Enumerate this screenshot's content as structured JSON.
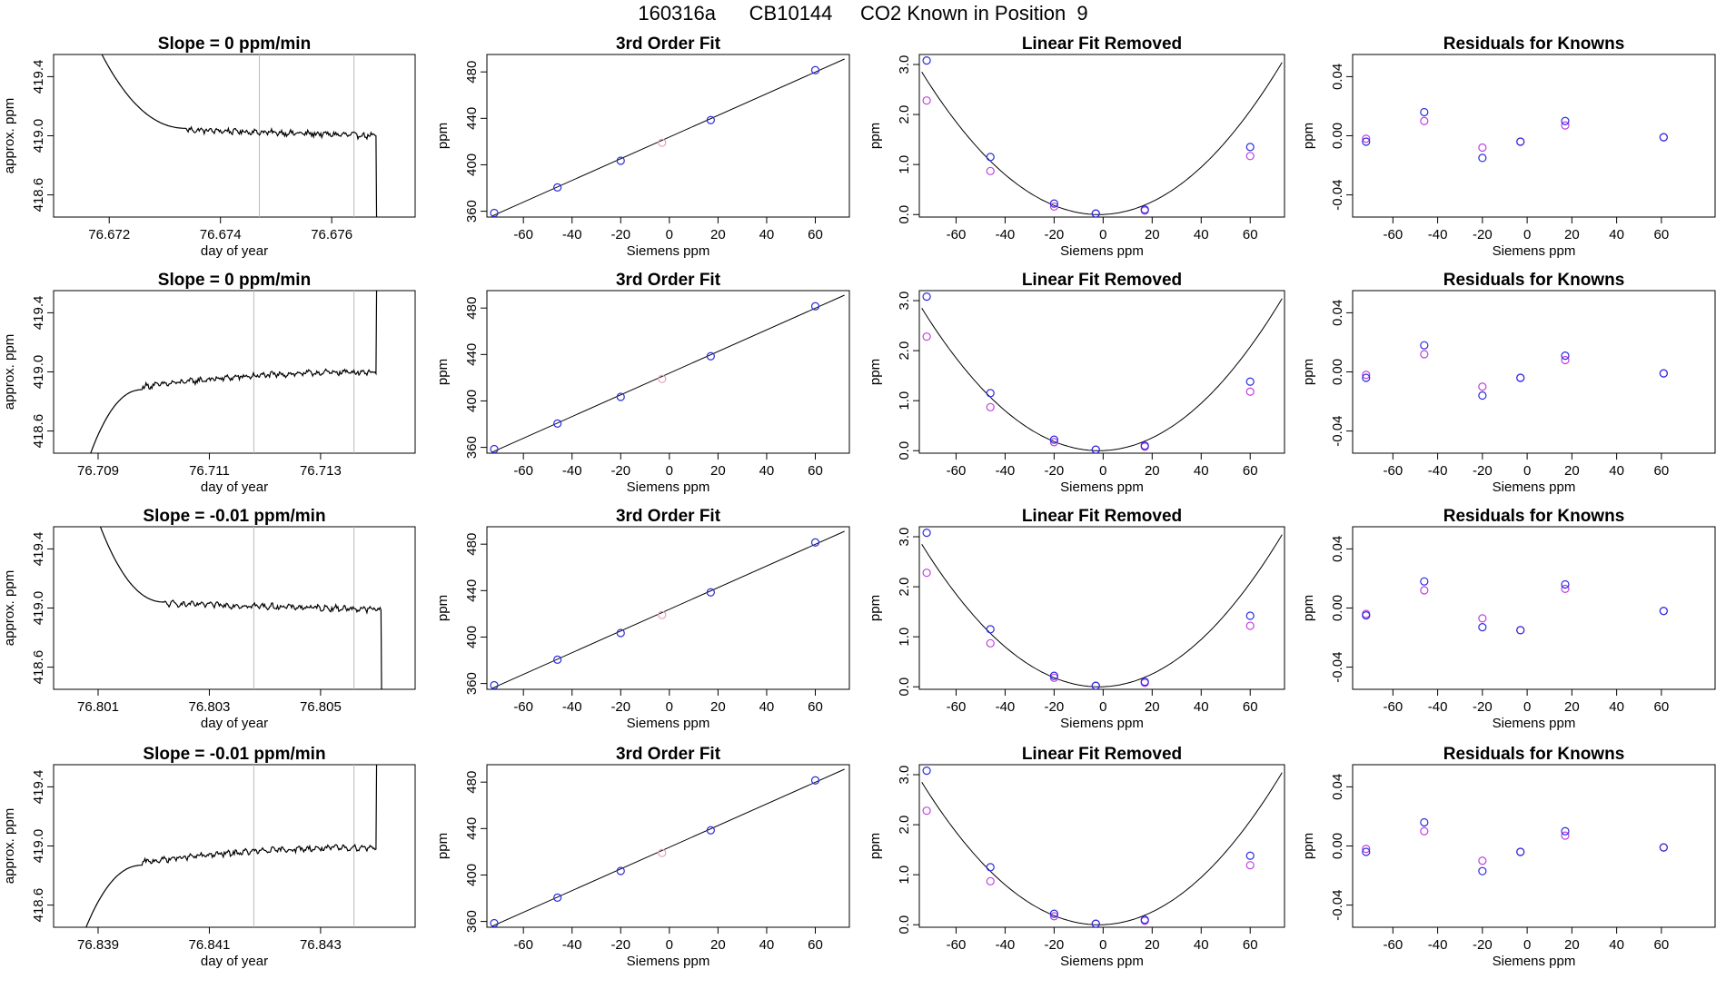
{
  "page_title": "160316a      CB10144     CO2 Known in Position  9",
  "colors": {
    "line": "#000000",
    "vline": "#bbbbbb",
    "blue": "#2b2be0",
    "magenta": "#c040e0",
    "pink": "#e8a0b8"
  },
  "chart_data": [
    {
      "type": "line",
      "panel": "trace",
      "row": 0,
      "title": "Slope =  0  ppm/min",
      "xlabel": "day of year",
      "ylabel": "approx. ppm",
      "xlim": [
        76.671,
        76.6775
      ],
      "ylim": [
        418.45,
        419.55
      ],
      "xticks": [
        76.672,
        76.674,
        76.676
      ],
      "xtick_labels": [
        "76.672",
        "76.674",
        "76.676"
      ],
      "yticks": [
        418.6,
        419.0,
        419.4
      ],
      "ytick_labels": [
        "418.6",
        "419.0",
        "419.4"
      ],
      "vlines": [
        76.6747,
        76.6764
      ],
      "shape": "fall",
      "plateau": 419.0,
      "transition": 76.6734,
      "edge_start": 76.6718,
      "edge_end": 76.6768
    },
    {
      "type": "line",
      "panel": "trace",
      "row": 1,
      "title": "Slope =  0  ppm/min",
      "xlabel": "day of year",
      "ylabel": "approx. ppm",
      "xlim": [
        76.7082,
        76.7147
      ],
      "ylim": [
        418.45,
        419.55
      ],
      "xticks": [
        76.709,
        76.711,
        76.713
      ],
      "xtick_labels": [
        "76.709",
        "76.711",
        "76.713"
      ],
      "yticks": [
        418.6,
        419.0,
        419.4
      ],
      "ytick_labels": [
        "418.6",
        "419.0",
        "419.4"
      ],
      "vlines": [
        76.7118,
        76.7136
      ],
      "shape": "rise",
      "plateau": 419.0,
      "transition": 76.7098,
      "edge_start": 76.7088,
      "edge_end": 76.714
    },
    {
      "type": "line",
      "panel": "trace",
      "row": 2,
      "title": "Slope =  -0.01  ppm/min",
      "xlabel": "day of year",
      "ylabel": "approx. ppm",
      "xlim": [
        76.8002,
        76.8067
      ],
      "ylim": [
        418.45,
        419.55
      ],
      "xticks": [
        76.801,
        76.803,
        76.805
      ],
      "xtick_labels": [
        "76.801",
        "76.803",
        "76.805"
      ],
      "yticks": [
        418.6,
        419.0,
        419.4
      ],
      "ytick_labels": [
        "418.6",
        "419.0",
        "419.4"
      ],
      "vlines": [
        76.8038,
        76.8056
      ],
      "shape": "fall",
      "plateau": 418.99,
      "transition": 76.8022,
      "edge_start": 76.801,
      "edge_end": 76.8061
    },
    {
      "type": "line",
      "panel": "trace",
      "row": 3,
      "title": "Slope =  -0.01  ppm/min",
      "xlabel": "day of year",
      "ylabel": "approx. ppm",
      "xlim": [
        76.8382,
        76.8447
      ],
      "ylim": [
        418.45,
        419.55
      ],
      "xticks": [
        76.839,
        76.841,
        76.843
      ],
      "xtick_labels": [
        "76.839",
        "76.841",
        "76.843"
      ],
      "yticks": [
        418.6,
        419.0,
        419.4
      ],
      "ytick_labels": [
        "418.6",
        "419.0",
        "419.4"
      ],
      "vlines": [
        76.8418,
        76.8436
      ],
      "shape": "rise",
      "plateau": 418.99,
      "transition": 76.8398,
      "edge_start": 76.8387,
      "edge_end": 76.844
    },
    {
      "type": "scatter",
      "panel": "fit",
      "row": 0,
      "title": "3rd Order Fit",
      "xlabel": "Siemens ppm",
      "ylabel": "ppm",
      "xlim": [
        -75,
        74
      ],
      "ylim": [
        355,
        495
      ],
      "xticks": [
        -60,
        -40,
        -20,
        0,
        20,
        40,
        60
      ],
      "xtick_labels": [
        "-60",
        "-40",
        "-20",
        "0",
        "20",
        "40",
        "60"
      ],
      "yticks": [
        360,
        400,
        440,
        480
      ],
      "ytick_labels": [
        "360",
        "400",
        "440",
        "480"
      ],
      "x": [
        -72,
        -46,
        -20,
        17,
        60
      ],
      "y": [
        358.5,
        380.5,
        403.5,
        438.5,
        481.5
      ],
      "unknown_x": [
        -3
      ],
      "unknown_y": [
        419
      ]
    },
    {
      "type": "scatter",
      "panel": "fit",
      "row": 1,
      "title": "3rd Order Fit",
      "xlabel": "Siemens ppm",
      "ylabel": "ppm",
      "xlim": [
        -75,
        74
      ],
      "ylim": [
        355,
        495
      ],
      "xticks": [
        -60,
        -40,
        -20,
        0,
        20,
        40,
        60
      ],
      "xtick_labels": [
        "-60",
        "-40",
        "-20",
        "0",
        "20",
        "40",
        "60"
      ],
      "yticks": [
        360,
        400,
        440,
        480
      ],
      "ytick_labels": [
        "360",
        "400",
        "440",
        "480"
      ],
      "x": [
        -72,
        -46,
        -20,
        17,
        60
      ],
      "y": [
        358.5,
        380.5,
        403.5,
        438.5,
        481.5
      ],
      "unknown_x": [
        -3
      ],
      "unknown_y": [
        419
      ]
    },
    {
      "type": "scatter",
      "panel": "fit",
      "row": 2,
      "title": "3rd Order Fit",
      "xlabel": "Siemens ppm",
      "ylabel": "ppm",
      "xlim": [
        -75,
        74
      ],
      "ylim": [
        355,
        495
      ],
      "xticks": [
        -60,
        -40,
        -20,
        0,
        20,
        40,
        60
      ],
      "xtick_labels": [
        "-60",
        "-40",
        "-20",
        "0",
        "20",
        "40",
        "60"
      ],
      "yticks": [
        360,
        400,
        440,
        480
      ],
      "ytick_labels": [
        "360",
        "400",
        "440",
        "480"
      ],
      "x": [
        -72,
        -46,
        -20,
        17,
        60
      ],
      "y": [
        358.5,
        380.5,
        403.5,
        438.5,
        481.5
      ],
      "unknown_x": [
        -3
      ],
      "unknown_y": [
        419
      ]
    },
    {
      "type": "scatter",
      "panel": "fit",
      "row": 3,
      "title": "3rd Order Fit",
      "xlabel": "Siemens ppm",
      "ylabel": "ppm",
      "xlim": [
        -75,
        74
      ],
      "ylim": [
        355,
        495
      ],
      "xticks": [
        -60,
        -40,
        -20,
        0,
        20,
        40,
        60
      ],
      "xtick_labels": [
        "-60",
        "-40",
        "-20",
        "0",
        "20",
        "40",
        "60"
      ],
      "yticks": [
        360,
        400,
        440,
        480
      ],
      "ytick_labels": [
        "360",
        "400",
        "440",
        "480"
      ],
      "x": [
        -72,
        -46,
        -20,
        17,
        60
      ],
      "y": [
        358.5,
        380.5,
        403.5,
        438.5,
        481.5
      ],
      "unknown_x": [
        -3
      ],
      "unknown_y": [
        419
      ]
    },
    {
      "type": "scatter",
      "panel": "linrem",
      "row": 0,
      "title": "Linear Fit Removed",
      "xlabel": "Siemens ppm",
      "ylabel": "ppm",
      "xlim": [
        -75,
        74
      ],
      "ylim": [
        -0.05,
        3.2
      ],
      "xticks": [
        -60,
        -40,
        -20,
        0,
        20,
        40,
        60
      ],
      "xtick_labels": [
        "-60",
        "-40",
        "-20",
        "0",
        "20",
        "40",
        "60"
      ],
      "yticks": [
        0.0,
        1.0,
        2.0,
        3.0
      ],
      "ytick_labels": [
        "0.0",
        "1.0",
        "2.0",
        "3.0"
      ],
      "blue_x": [
        -72,
        -46,
        -20,
        -3,
        17,
        60
      ],
      "blue_y": [
        3.08,
        1.15,
        0.22,
        0.02,
        0.1,
        1.35
      ],
      "mag_x": [
        -72,
        -46,
        -20,
        -3,
        17,
        60
      ],
      "mag_y": [
        2.28,
        0.87,
        0.16,
        0.02,
        0.08,
        1.17
      ],
      "curve": [
        0.000545,
        0.0,
        -1.7
      ]
    },
    {
      "type": "scatter",
      "panel": "linrem",
      "row": 1,
      "title": "Linear Fit Removed",
      "xlabel": "Siemens ppm",
      "ylabel": "ppm",
      "xlim": [
        -75,
        74
      ],
      "ylim": [
        -0.05,
        3.2
      ],
      "xticks": [
        -60,
        -40,
        -20,
        0,
        20,
        40,
        60
      ],
      "xtick_labels": [
        "-60",
        "-40",
        "-20",
        "0",
        "20",
        "40",
        "60"
      ],
      "yticks": [
        0.0,
        1.0,
        2.0,
        3.0
      ],
      "ytick_labels": [
        "0.0",
        "1.0",
        "2.0",
        "3.0"
      ],
      "blue_x": [
        -72,
        -46,
        -20,
        -3,
        17,
        60
      ],
      "blue_y": [
        3.08,
        1.15,
        0.22,
        0.02,
        0.1,
        1.38
      ],
      "mag_x": [
        -72,
        -46,
        -20,
        -3,
        17,
        60
      ],
      "mag_y": [
        2.28,
        0.87,
        0.17,
        0.02,
        0.08,
        1.18
      ],
      "curve": [
        0.000545,
        0.0,
        -1.7
      ]
    },
    {
      "type": "scatter",
      "panel": "linrem",
      "row": 2,
      "title": "Linear Fit Removed",
      "xlabel": "Siemens ppm",
      "ylabel": "ppm",
      "xlim": [
        -75,
        74
      ],
      "ylim": [
        -0.05,
        3.2
      ],
      "xticks": [
        -60,
        -40,
        -20,
        0,
        20,
        40,
        60
      ],
      "xtick_labels": [
        "-60",
        "-40",
        "-20",
        "0",
        "20",
        "40",
        "60"
      ],
      "yticks": [
        0.0,
        1.0,
        2.0,
        3.0
      ],
      "ytick_labels": [
        "0.0",
        "1.0",
        "2.0",
        "3.0"
      ],
      "blue_x": [
        -72,
        -46,
        -20,
        -3,
        17,
        60
      ],
      "blue_y": [
        3.08,
        1.15,
        0.22,
        0.02,
        0.1,
        1.42
      ],
      "mag_x": [
        -72,
        -46,
        -20,
        -3,
        17,
        60
      ],
      "mag_y": [
        2.28,
        0.87,
        0.18,
        0.02,
        0.08,
        1.22
      ],
      "curve": [
        0.000545,
        0.0,
        -1.7
      ]
    },
    {
      "type": "scatter",
      "panel": "linrem",
      "row": 3,
      "title": "Linear Fit Removed",
      "xlabel": "Siemens ppm",
      "ylabel": "ppm",
      "xlim": [
        -75,
        74
      ],
      "ylim": [
        -0.05,
        3.2
      ],
      "xticks": [
        -60,
        -40,
        -20,
        0,
        20,
        40,
        60
      ],
      "xtick_labels": [
        "-60",
        "-40",
        "-20",
        "0",
        "20",
        "40",
        "60"
      ],
      "yticks": [
        0.0,
        1.0,
        2.0,
        3.0
      ],
      "ytick_labels": [
        "0.0",
        "1.0",
        "2.0",
        "3.0"
      ],
      "blue_x": [
        -72,
        -46,
        -20,
        -3,
        17,
        60
      ],
      "blue_y": [
        3.08,
        1.15,
        0.22,
        0.02,
        0.1,
        1.38
      ],
      "mag_x": [
        -72,
        -46,
        -20,
        -3,
        17,
        60
      ],
      "mag_y": [
        2.28,
        0.87,
        0.17,
        0.02,
        0.08,
        1.19
      ],
      "curve": [
        0.000545,
        0.0,
        -1.7
      ]
    },
    {
      "type": "scatter",
      "panel": "resid",
      "row": 0,
      "title": "Residuals for Knowns",
      "xlabel": "Siemens ppm",
      "ylabel": "ppm",
      "xlim": [
        -78,
        84
      ],
      "ylim": [
        -0.055,
        0.055
      ],
      "xticks": [
        -60,
        -40,
        -20,
        0,
        20,
        40,
        60
      ],
      "xtick_labels": [
        "-60",
        "-40",
        "-20",
        "0",
        "20",
        "40",
        "60"
      ],
      "yticks": [
        -0.04,
        0.0,
        0.04
      ],
      "ytick_labels": [
        "-0.04",
        "0.00",
        "0.04"
      ],
      "blue_x": [
        -72,
        -46,
        -20,
        -3,
        17,
        61
      ],
      "blue_y": [
        -0.004,
        0.016,
        -0.015,
        -0.004,
        0.01,
        -0.001
      ],
      "mag_x": [
        -72,
        -46,
        -20,
        -3,
        17,
        61
      ],
      "mag_y": [
        -0.002,
        0.01,
        -0.008,
        -0.004,
        0.007,
        -0.001
      ]
    },
    {
      "type": "scatter",
      "panel": "resid",
      "row": 1,
      "title": "Residuals for Knowns",
      "xlabel": "Siemens ppm",
      "ylabel": "ppm",
      "xlim": [
        -78,
        84
      ],
      "ylim": [
        -0.055,
        0.055
      ],
      "xticks": [
        -60,
        -40,
        -20,
        0,
        20,
        40,
        60
      ],
      "xtick_labels": [
        "-60",
        "-40",
        "-20",
        "0",
        "20",
        "40",
        "60"
      ],
      "yticks": [
        -0.04,
        0.0,
        0.04
      ],
      "ytick_labels": [
        "-0.04",
        "0.00",
        "0.04"
      ],
      "blue_x": [
        -72,
        -46,
        -20,
        -3,
        17,
        61
      ],
      "blue_y": [
        -0.004,
        0.018,
        -0.016,
        -0.004,
        0.011,
        -0.001
      ],
      "mag_x": [
        -72,
        -46,
        -20,
        -3,
        17,
        61
      ],
      "mag_y": [
        -0.002,
        0.012,
        -0.01,
        -0.004,
        0.008,
        -0.001
      ]
    },
    {
      "type": "scatter",
      "panel": "resid",
      "row": 2,
      "title": "Residuals for Knowns",
      "xlabel": "Siemens ppm",
      "ylabel": "ppm",
      "xlim": [
        -78,
        84
      ],
      "ylim": [
        -0.055,
        0.055
      ],
      "xticks": [
        -60,
        -40,
        -20,
        0,
        20,
        40,
        60
      ],
      "xtick_labels": [
        "-60",
        "-40",
        "-20",
        "0",
        "20",
        "40",
        "60"
      ],
      "yticks": [
        -0.04,
        0.0,
        0.04
      ],
      "ytick_labels": [
        "-0.04",
        "0.00",
        "0.04"
      ],
      "blue_x": [
        -72,
        -46,
        -20,
        -3,
        17,
        61
      ],
      "blue_y": [
        -0.005,
        0.018,
        -0.013,
        -0.015,
        0.016,
        -0.002
      ],
      "mag_x": [
        -72,
        -46,
        -20,
        -3,
        17,
        61
      ],
      "mag_y": [
        -0.004,
        0.012,
        -0.007,
        -0.015,
        0.013,
        -0.002
      ]
    },
    {
      "type": "scatter",
      "panel": "resid",
      "row": 3,
      "title": "Residuals for Knowns",
      "xlabel": "Siemens ppm",
      "ylabel": "ppm",
      "xlim": [
        -78,
        84
      ],
      "ylim": [
        -0.055,
        0.055
      ],
      "xticks": [
        -60,
        -40,
        -20,
        0,
        20,
        40,
        60
      ],
      "xtick_labels": [
        "-60",
        "-40",
        "-20",
        "0",
        "20",
        "40",
        "60"
      ],
      "yticks": [
        -0.04,
        0.0,
        0.04
      ],
      "ytick_labels": [
        "-0.04",
        "0.00",
        "0.04"
      ],
      "blue_x": [
        -72,
        -46,
        -20,
        -3,
        17,
        61
      ],
      "blue_y": [
        -0.004,
        0.016,
        -0.017,
        -0.004,
        0.01,
        -0.001
      ],
      "mag_x": [
        -72,
        -46,
        -20,
        -3,
        17,
        61
      ],
      "mag_y": [
        -0.002,
        0.01,
        -0.01,
        -0.004,
        0.007,
        -0.001
      ]
    }
  ]
}
